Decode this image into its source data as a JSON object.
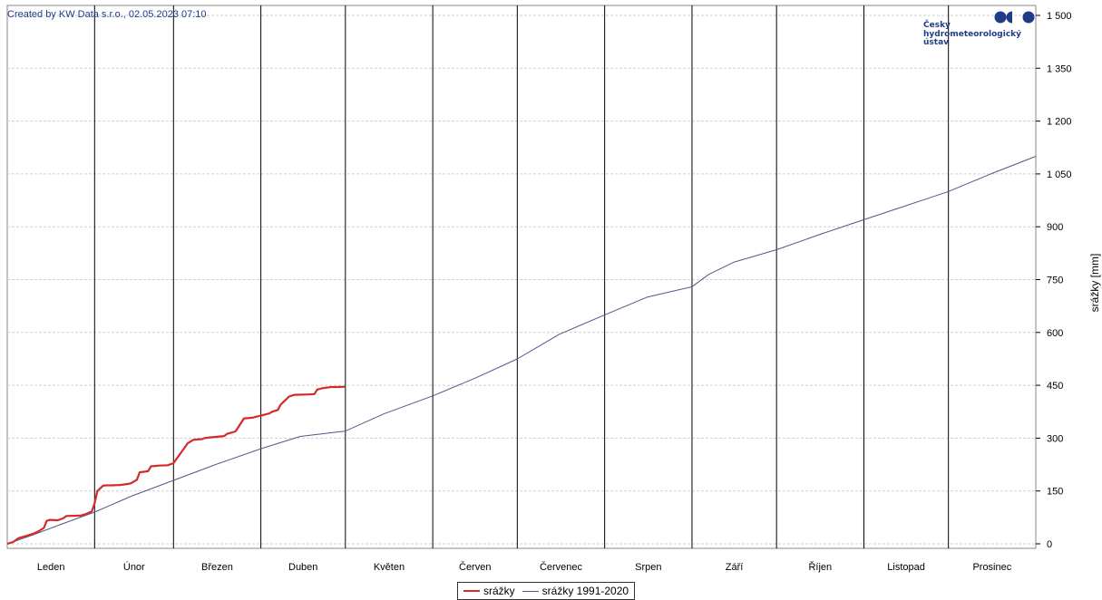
{
  "credit": "Created by KW Data s.r.o., 02.05.2023 07:10",
  "logo": {
    "lines": [
      "Český",
      "hydrometeorologický",
      "ústav"
    ]
  },
  "colors": {
    "current": "#d42a2a",
    "normal": "#4a5a8a",
    "axis": "#888888",
    "grid": "#cfcfcf",
    "month_line": "#000000"
  },
  "chart_data": {
    "type": "line",
    "ylabel": "srážky [mm]",
    "ylim": [
      0,
      1500
    ],
    "yticks": [
      0,
      150,
      300,
      450,
      600,
      750,
      900,
      1050,
      1200,
      1350,
      1500
    ],
    "ytick_labels": [
      "0",
      "150",
      "300",
      "450",
      "600",
      "750",
      "900",
      "1 050",
      "1 200",
      "1 350",
      "1 500"
    ],
    "xlim": [
      1,
      366
    ],
    "month_labels": [
      "Leden",
      "Únor",
      "Březen",
      "Duben",
      "Květen",
      "Červen",
      "Červenec",
      "Srpen",
      "Září",
      "Říjen",
      "Listopad",
      "Prosinec"
    ],
    "month_boundaries": [
      32,
      60,
      91,
      121,
      152,
      182,
      213,
      244,
      274,
      305,
      335
    ],
    "grid": true,
    "legend_position": "bottom",
    "series": [
      {
        "name": "srážky",
        "x": [
          1,
          3,
          5,
          8,
          10,
          12,
          14,
          15,
          16,
          19,
          21,
          22,
          27,
          29,
          31,
          32,
          33,
          35,
          36,
          38,
          41,
          44,
          45,
          47,
          48,
          51,
          52,
          55,
          58,
          60,
          65,
          67,
          69,
          70,
          71,
          72,
          73,
          78,
          79,
          82,
          85,
          88,
          89,
          90,
          94,
          95,
          97,
          98,
          100,
          101,
          103,
          108,
          110,
          111,
          113,
          116,
          118,
          121
        ],
        "values": [
          0,
          5,
          16,
          23,
          28,
          35,
          45,
          65,
          68,
          67,
          73,
          79,
          80,
          85,
          92,
          115,
          150,
          165,
          166,
          166,
          167,
          170,
          172,
          182,
          203,
          206,
          220,
          222,
          223,
          229,
          285,
          295,
          297,
          297,
          300,
          301,
          302,
          306,
          312,
          319,
          356,
          358,
          360,
          362,
          370,
          375,
          380,
          395,
          410,
          418,
          423,
          424,
          425,
          438,
          442,
          445,
          445,
          446
        ]
      },
      {
        "name": "srážky 1991-2020",
        "x": [
          1,
          10,
          20,
          32,
          45,
          60,
          75,
          91,
          105,
          121,
          135,
          152,
          167,
          182,
          197,
          213,
          228,
          244,
          250,
          259,
          274,
          290,
          305,
          320,
          335,
          350,
          366
        ],
        "values": [
          0,
          25,
          55,
          90,
          135,
          180,
          225,
          270,
          305,
          320,
          370,
          420,
          470,
          525,
          595,
          650,
          700,
          730,
          765,
          800,
          835,
          880,
          920,
          960,
          1000,
          1050,
          1100
        ]
      }
    ]
  }
}
